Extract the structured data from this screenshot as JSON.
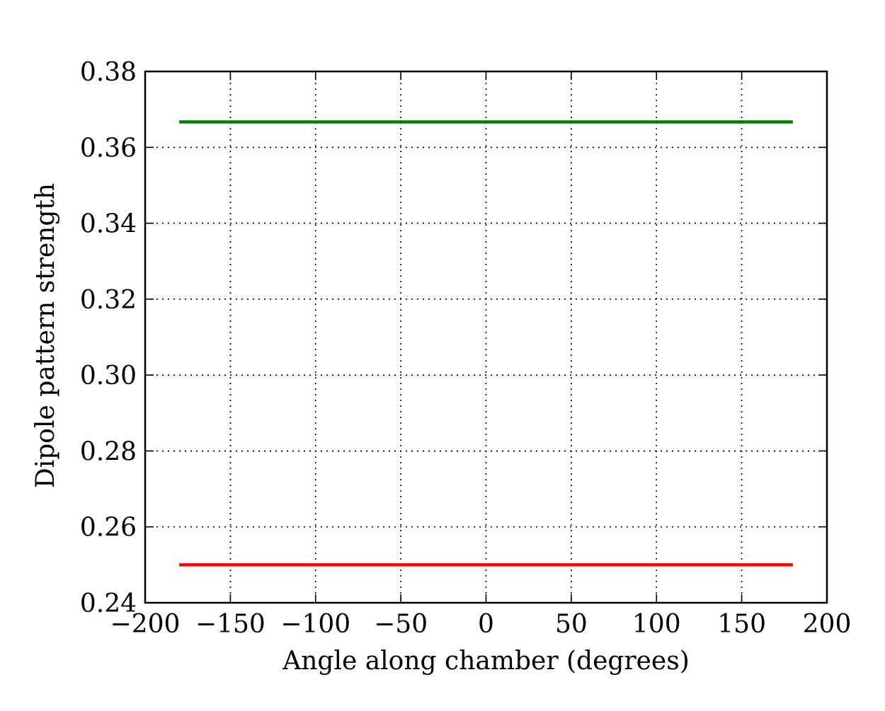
{
  "chart_data": {
    "type": "line",
    "title": "",
    "xlabel": "Angle along chamber (degrees)",
    "ylabel": "Dipole pattern strength",
    "xlim": [
      -200,
      200
    ],
    "ylim": [
      0.24,
      0.38
    ],
    "x_ticks": [
      -200,
      -150,
      -100,
      -50,
      0,
      50,
      100,
      150,
      200
    ],
    "x_tick_labels": [
      "−200",
      "−150",
      "−100",
      "−50",
      "0",
      "50",
      "100",
      "150",
      "200"
    ],
    "y_ticks": [
      0.24,
      0.26,
      0.28,
      0.3,
      0.32,
      0.34,
      0.36,
      0.38
    ],
    "y_tick_labels": [
      "0.24",
      "0.26",
      "0.28",
      "0.30",
      "0.32",
      "0.34",
      "0.36",
      "0.38"
    ],
    "grid": true,
    "legend": "none",
    "series": [
      {
        "color": "#008000",
        "x": [
          -180,
          180
        ],
        "y": [
          0.3667,
          0.3667
        ]
      },
      {
        "color": "#ff0000",
        "x": [
          -180,
          180
        ],
        "y": [
          0.25,
          0.25
        ]
      }
    ]
  }
}
